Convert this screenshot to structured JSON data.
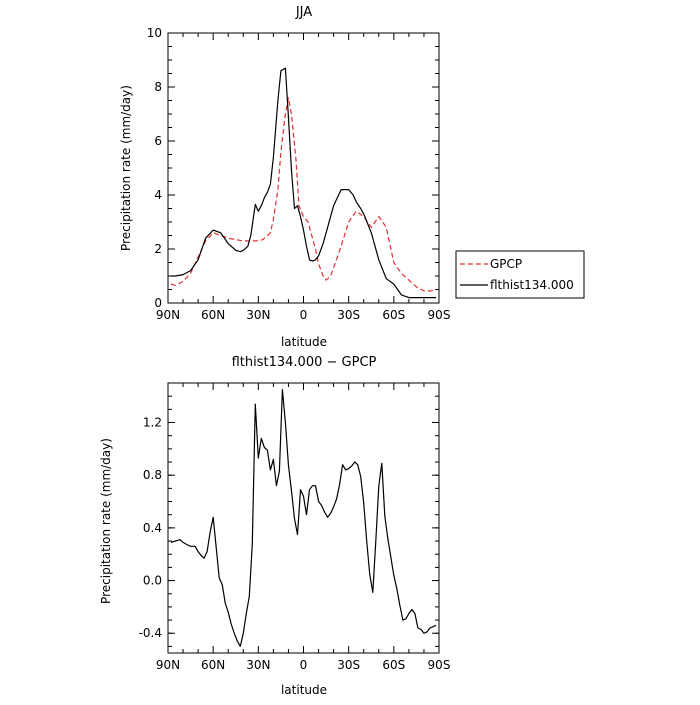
{
  "chart_data": [
    {
      "type": "line",
      "title": "JJA",
      "xlabel": "latitude",
      "ylabel": "Precipitation rate (mm/day)",
      "xlim": [
        90,
        -90
      ],
      "ylim": [
        0,
        10
      ],
      "x_ticks": [
        90,
        60,
        30,
        0,
        -30,
        -60,
        -90
      ],
      "x_tick_labels": [
        "90N",
        "60N",
        "30N",
        "0",
        "30S",
        "60S",
        "90S"
      ],
      "y_ticks": [
        0,
        2,
        4,
        6,
        8,
        10
      ],
      "y_tick_labels": [
        "0",
        "2",
        "4",
        "6",
        "8",
        "10"
      ],
      "legend_position": "right",
      "series": [
        {
          "name": "GPCP",
          "color": "#e03030",
          "dash": "dashed",
          "x": [
            88,
            85,
            80,
            75,
            70,
            65,
            60,
            55,
            50,
            45,
            40,
            35,
            30,
            27,
            25,
            22,
            20,
            17,
            15,
            12,
            10,
            8,
            5,
            3,
            0,
            -3,
            -5,
            -8,
            -10,
            -13,
            -15,
            -18,
            -20,
            -25,
            -30,
            -35,
            -40,
            -45,
            -50,
            -55,
            -60,
            -65,
            -70,
            -75,
            -80,
            -85,
            -88
          ],
          "y": [
            0.7,
            0.65,
            0.8,
            1.1,
            1.7,
            2.3,
            2.6,
            2.5,
            2.4,
            2.35,
            2.3,
            2.3,
            2.3,
            2.35,
            2.45,
            2.6,
            3.1,
            4.2,
            5.6,
            7.0,
            7.6,
            7.0,
            5.3,
            3.6,
            3.2,
            3.0,
            2.6,
            2.0,
            1.45,
            1.0,
            0.85,
            1.0,
            1.3,
            2.1,
            3.0,
            3.4,
            3.2,
            2.8,
            3.2,
            2.8,
            1.5,
            1.1,
            0.85,
            0.6,
            0.45,
            0.45,
            0.5
          ]
        },
        {
          "name": "flthist134.000",
          "color": "#000000",
          "dash": "solid",
          "x": [
            88,
            85,
            80,
            75,
            70,
            65,
            60,
            55,
            50,
            45,
            42,
            40,
            37,
            35,
            32,
            30,
            28,
            26,
            24,
            22,
            20,
            17,
            15,
            12,
            10,
            8,
            6,
            4,
            3,
            2,
            0,
            -2,
            -4,
            -6,
            -8,
            -10,
            -13,
            -15,
            -20,
            -25,
            -30,
            -33,
            -35,
            -38,
            -40,
            -45,
            -50,
            -55,
            -60,
            -65,
            -70,
            -75,
            -80,
            -83,
            -85,
            -88
          ],
          "y": [
            1.0,
            1.0,
            1.05,
            1.2,
            1.6,
            2.4,
            2.7,
            2.6,
            2.2,
            1.95,
            1.9,
            1.95,
            2.1,
            2.5,
            3.65,
            3.4,
            3.6,
            3.9,
            4.1,
            4.4,
            5.4,
            7.5,
            8.6,
            8.7,
            6.9,
            4.9,
            3.5,
            3.6,
            3.4,
            3.2,
            2.7,
            2.1,
            1.6,
            1.55,
            1.6,
            1.75,
            2.2,
            2.6,
            3.6,
            4.2,
            4.2,
            4.0,
            3.75,
            3.5,
            3.3,
            2.6,
            1.6,
            0.9,
            0.7,
            0.3,
            0.2,
            0.2,
            0.2,
            0.2,
            0.2,
            0.2
          ]
        }
      ]
    },
    {
      "type": "line",
      "title": "flthist134.000 − GPCP",
      "xlabel": "latitude",
      "ylabel": "Precipitation rate (mm/day)",
      "xlim": [
        90,
        -90
      ],
      "ylim": [
        -0.55,
        1.5
      ],
      "x_ticks": [
        90,
        60,
        30,
        0,
        -30,
        -60,
        -90
      ],
      "x_tick_labels": [
        "90N",
        "60N",
        "30N",
        "0",
        "30S",
        "60S",
        "90S"
      ],
      "y_ticks": [
        -0.4,
        0.0,
        0.4,
        0.8,
        1.2
      ],
      "y_tick_labels": [
        "-0.4",
        "0.0",
        "0.4",
        "0.8",
        "1.2"
      ],
      "series": [
        {
          "name": "",
          "color": "#000000",
          "dash": "solid",
          "x": [
            88,
            85,
            82,
            80,
            77,
            75,
            72,
            70,
            68,
            66,
            64,
            62,
            60,
            58,
            56,
            54,
            52,
            50,
            48,
            46,
            44,
            42,
            40,
            38,
            36,
            34,
            32,
            30,
            28,
            26,
            24,
            22,
            20,
            18,
            16,
            14,
            12,
            10,
            8,
            6,
            4,
            2,
            0,
            -2,
            -4,
            -6,
            -8,
            -10,
            -12,
            -14,
            -16,
            -18,
            -20,
            -22,
            -24,
            -26,
            -28,
            -30,
            -32,
            -34,
            -36,
            -38,
            -40,
            -42,
            -44,
            -46,
            -48,
            -50,
            -52,
            -54,
            -56,
            -58,
            -60,
            -62,
            -64,
            -66,
            -68,
            -70,
            -72,
            -74,
            -76,
            -78,
            -80,
            -82,
            -84,
            -86,
            -88
          ],
          "y": [
            0.29,
            0.3,
            0.31,
            0.29,
            0.27,
            0.26,
            0.26,
            0.22,
            0.19,
            0.17,
            0.22,
            0.37,
            0.48,
            0.25,
            0.02,
            -0.03,
            -0.17,
            -0.24,
            -0.33,
            -0.4,
            -0.46,
            -0.5,
            -0.4,
            -0.25,
            -0.12,
            0.28,
            1.34,
            0.93,
            1.08,
            1.01,
            0.99,
            0.84,
            0.92,
            0.72,
            0.83,
            1.45,
            1.2,
            0.88,
            0.68,
            0.47,
            0.35,
            0.69,
            0.64,
            0.5,
            0.69,
            0.72,
            0.72,
            0.6,
            0.57,
            0.52,
            0.48,
            0.51,
            0.56,
            0.62,
            0.73,
            0.88,
            0.84,
            0.85,
            0.87,
            0.9,
            0.88,
            0.79,
            0.59,
            0.3,
            0.05,
            -0.09,
            0.3,
            0.72,
            0.89,
            0.49,
            0.32,
            0.18,
            0.04,
            -0.06,
            -0.19,
            -0.3,
            -0.29,
            -0.25,
            -0.22,
            -0.25,
            -0.36,
            -0.37,
            -0.4,
            -0.39,
            -0.36,
            -0.35,
            -0.34
          ]
        }
      ]
    }
  ]
}
